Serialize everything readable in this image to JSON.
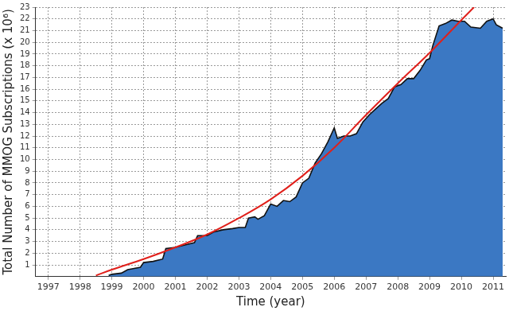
{
  "chart_data": {
    "type": "line",
    "x_label": "Time (year)",
    "y_label": "Total Number of MMOG Subscriptions (x 10⁶)",
    "xlim": [
      1996.6,
      2011.4
    ],
    "xticks": [
      1997,
      1998,
      1999,
      2000,
      2001,
      2002,
      2003,
      2004,
      2005,
      2006,
      2007,
      2008,
      2009,
      2010,
      2011
    ],
    "ylim": [
      0,
      23
    ],
    "yticks": [
      1,
      2,
      3,
      4,
      5,
      6,
      7,
      8,
      9,
      10,
      11,
      12,
      13,
      14,
      15,
      16,
      17,
      18,
      19,
      20,
      21,
      22,
      23
    ],
    "grid": true,
    "series": [
      {
        "type": "area",
        "color": "#3b78c3",
        "x": [
          1998.9,
          1999.0,
          1999.3,
          1999.5,
          1999.7,
          1999.9,
          2000.0,
          2000.3,
          2000.6,
          2000.7,
          2001.0,
          2001.3,
          2001.6,
          2001.7,
          2002.0,
          2002.2,
          2002.5,
          2002.8,
          2003.0,
          2003.2,
          2003.3,
          2003.5,
          2003.6,
          2003.8,
          2004.0,
          2004.2,
          2004.4,
          2004.6,
          2004.8,
          2005.0,
          2005.2,
          2005.4,
          2005.6,
          2005.8,
          2006.0,
          2006.1,
          2006.3,
          2006.5,
          2006.7,
          2006.9,
          2007.1,
          2007.3,
          2007.5,
          2007.7,
          2007.9,
          2008.1,
          2008.3,
          2008.5,
          2008.7,
          2008.9,
          2009.0,
          2009.1,
          2009.3,
          2009.5,
          2009.7,
          2009.9,
          2010.1,
          2010.3,
          2010.6,
          2010.8,
          2011.0,
          2011.1,
          2011.3
        ],
        "values": [
          0.1,
          0.2,
          0.3,
          0.6,
          0.7,
          0.8,
          1.2,
          1.3,
          1.5,
          2.4,
          2.5,
          2.7,
          2.9,
          3.5,
          3.5,
          3.8,
          4.0,
          4.1,
          4.2,
          4.2,
          5.0,
          5.1,
          4.9,
          5.2,
          6.2,
          6.0,
          6.5,
          6.4,
          6.8,
          8.0,
          8.4,
          9.7,
          10.5,
          11.5,
          12.7,
          11.8,
          12.0,
          12.0,
          12.2,
          13.2,
          13.8,
          14.3,
          14.8,
          15.2,
          16.2,
          16.4,
          16.9,
          16.9,
          17.6,
          18.5,
          18.6,
          19.7,
          21.4,
          21.6,
          21.9,
          21.8,
          21.8,
          21.3,
          21.2,
          21.8,
          22.0,
          21.5,
          21.2
        ]
      },
      {
        "type": "line",
        "color": "#e0201b",
        "x": [
          1998.5,
          1999.0,
          2000.0,
          2001.0,
          2002.0,
          2003.0,
          2004.0,
          2005.0,
          2006.0,
          2007.0,
          2008.0,
          2009.0,
          2010.0,
          2010.4
        ],
        "values": [
          0.1,
          0.6,
          1.5,
          2.5,
          3.6,
          5.0,
          6.6,
          8.6,
          11.0,
          13.8,
          16.5,
          19.1,
          21.9,
          23.0
        ]
      }
    ]
  }
}
